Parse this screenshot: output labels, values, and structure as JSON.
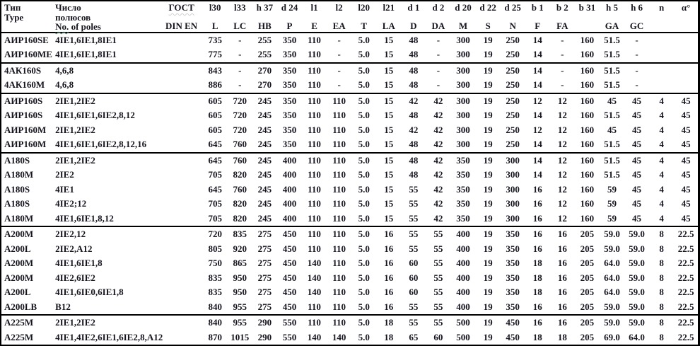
{
  "table": {
    "header": {
      "type_col": {
        "line1": "Тип",
        "line2": "Type"
      },
      "poles_col": {
        "line1": "Число",
        "line2": "полюсов",
        "line3_no": "No.",
        "line3_rest": "of poles"
      },
      "gost_col": {
        "line1": "ГОСТ",
        "line2": "DIN EN"
      },
      "dim_cols": [
        {
          "symbol": "l30",
          "din": "L"
        },
        {
          "symbol": "l33",
          "din": "LC"
        },
        {
          "symbol": "h 37",
          "din": "HB"
        },
        {
          "symbol": "d 24",
          "din": "P"
        },
        {
          "symbol": "l1",
          "din": "E"
        },
        {
          "symbol": "l2",
          "din": "EA"
        },
        {
          "symbol": "l20",
          "din": "T"
        },
        {
          "symbol": "l21",
          "din": "LA"
        },
        {
          "symbol": "d 1",
          "din": "D"
        },
        {
          "symbol": "d 2",
          "din": "DA"
        },
        {
          "symbol": "d 20",
          "din": "M"
        },
        {
          "symbol": "d 22",
          "din": "S"
        },
        {
          "symbol": "d 25",
          "din": "N"
        },
        {
          "symbol": "b 1",
          "din": "F"
        },
        {
          "symbol": "b 2",
          "din": "FA"
        },
        {
          "symbol": "b 31",
          "din": ""
        },
        {
          "symbol": "h 5",
          "din": "GA"
        },
        {
          "symbol": "h 6",
          "din": "GC"
        },
        {
          "symbol": "n",
          "din": ""
        },
        {
          "symbol": "α°",
          "din": ""
        }
      ]
    },
    "groups": [
      {
        "rows": [
          {
            "type": "АИР160SE",
            "poles": "4IE1,6IE1,8IE1",
            "gost": "",
            "values": [
              "735",
              "-",
              "255",
              "350",
              "110",
              "-",
              "5.0",
              "15",
              "48",
              "-",
              "300",
              "19",
              "250",
              "14",
              "-",
              "160",
              "51.5",
              "-",
              "",
              ""
            ]
          },
          {
            "type": "АИР160ME",
            "poles": "4IE1,6IE1,8IE1",
            "gost": "",
            "values": [
              "775",
              "-",
              "255",
              "350",
              "110",
              "-",
              "5.0",
              "15",
              "48",
              "-",
              "300",
              "19",
              "250",
              "14",
              "-",
              "160",
              "51.5",
              "-",
              "",
              ""
            ]
          }
        ]
      },
      {
        "rows": [
          {
            "type": "4АК160S",
            "poles": "4,6,8",
            "gost": "",
            "values": [
              "843",
              "-",
              "270",
              "350",
              "110",
              "-",
              "5.0",
              "15",
              "48",
              "-",
              "300",
              "19",
              "250",
              "14",
              "-",
              "160",
              "51.5",
              "-",
              "",
              ""
            ]
          },
          {
            "type": "4АК160M",
            "poles": "4,6,8",
            "gost": "",
            "values": [
              "886",
              "-",
              "270",
              "350",
              "110",
              "-",
              "5.0",
              "15",
              "48",
              "-",
              "300",
              "19",
              "250",
              "14",
              "-",
              "160",
              "51.5",
              "-",
              "",
              ""
            ]
          }
        ]
      },
      {
        "rows": [
          {
            "type": "АИР160S",
            "poles": "2IE1,2IE2",
            "gost": "",
            "values": [
              "605",
              "720",
              "245",
              "350",
              "110",
              "110",
              "5.0",
              "15",
              "42",
              "42",
              "300",
              "19",
              "250",
              "12",
              "12",
              "160",
              "45",
              "45",
              "4",
              "45"
            ]
          },
          {
            "type": "АИР160S",
            "poles": "4IE1,6IE1,6IE2,8,12",
            "gost": "",
            "values": [
              "605",
              "720",
              "245",
              "350",
              "110",
              "110",
              "5.0",
              "15",
              "48",
              "42",
              "300",
              "19",
              "250",
              "14",
              "12",
              "160",
              "51.5",
              "45",
              "4",
              "45"
            ]
          },
          {
            "type": "АИР160M",
            "poles": "2IE1,2IE2",
            "gost": "",
            "values": [
              "605",
              "720",
              "245",
              "350",
              "110",
              "110",
              "5.0",
              "15",
              "42",
              "42",
              "300",
              "19",
              "250",
              "12",
              "12",
              "160",
              "45",
              "45",
              "4",
              "45"
            ]
          },
          {
            "type": "АИР160M",
            "poles": "4IE1,6IE1,6IE2,8,12,16",
            "gost": "",
            "values": [
              "645",
              "760",
              "245",
              "350",
              "110",
              "110",
              "5.0",
              "15",
              "48",
              "42",
              "300",
              "19",
              "250",
              "14",
              "12",
              "160",
              "51.5",
              "45",
              "4",
              "45"
            ]
          }
        ]
      },
      {
        "rows": [
          {
            "type": "А180S",
            "poles": "2IE1,2IE2",
            "gost": "",
            "values": [
              "645",
              "760",
              "245",
              "400",
              "110",
              "110",
              "5.0",
              "15",
              "48",
              "42",
              "350",
              "19",
              "300",
              "14",
              "12",
              "160",
              "51.5",
              "45",
              "4",
              "45"
            ]
          },
          {
            "type": "А180M",
            "poles": "2IE2",
            "gost": "",
            "values": [
              "705",
              "820",
              "245",
              "400",
              "110",
              "110",
              "5.0",
              "15",
              "48",
              "42",
              "350",
              "19",
              "300",
              "14",
              "12",
              "160",
              "51.5",
              "45",
              "4",
              "45"
            ]
          },
          {
            "type": "А180S",
            "poles": "4IE1",
            "gost": "",
            "values": [
              "645",
              "760",
              "245",
              "400",
              "110",
              "110",
              "5.0",
              "15",
              "55",
              "42",
              "350",
              "19",
              "300",
              "16",
              "12",
              "160",
              "59",
              "45",
              "4",
              "45"
            ]
          },
          {
            "type": "А180S",
            "poles": "4IE2;12",
            "gost": "",
            "values": [
              "705",
              "820",
              "245",
              "400",
              "110",
              "110",
              "5.0",
              "15",
              "55",
              "42",
              "350",
              "19",
              "300",
              "16",
              "12",
              "160",
              "59",
              "45",
              "4",
              "45"
            ]
          },
          {
            "type": "А180M",
            "poles": "4IE1,6IE1,8,12",
            "gost": "",
            "values": [
              "705",
              "820",
              "245",
              "400",
              "110",
              "110",
              "5.0",
              "15",
              "55",
              "42",
              "350",
              "19",
              "300",
              "16",
              "12",
              "160",
              "59",
              "45",
              "4",
              "45"
            ]
          }
        ]
      },
      {
        "rows": [
          {
            "type": "А200M",
            "poles": "2IE2,12",
            "gost": "",
            "values": [
              "720",
              "835",
              "275",
              "450",
              "110",
              "110",
              "5.0",
              "16",
              "55",
              "55",
              "400",
              "19",
              "350",
              "16",
              "16",
              "205",
              "59.0",
              "59.0",
              "8",
              "22.5"
            ]
          },
          {
            "type": "А200L",
            "poles": "2IE2,A12",
            "gost": "",
            "values": [
              "805",
              "920",
              "275",
              "450",
              "110",
              "110",
              "5.0",
              "16",
              "55",
              "55",
              "400",
              "19",
              "350",
              "16",
              "16",
              "205",
              "59.0",
              "59.0",
              "8",
              "22.5"
            ]
          },
          {
            "type": "А200M",
            "poles": "4IE1,6IE1,8",
            "gost": "",
            "values": [
              "750",
              "865",
              "275",
              "450",
              "140",
              "110",
              "5.0",
              "16",
              "60",
              "55",
              "400",
              "19",
              "350",
              "18",
              "16",
              "205",
              "64.0",
              "59.0",
              "8",
              "22.5"
            ]
          },
          {
            "type": "А200M",
            "poles": "4IE2,6IE2",
            "gost": "",
            "values": [
              "835",
              "950",
              "275",
              "450",
              "140",
              "110",
              "5.0",
              "16",
              "60",
              "55",
              "400",
              "19",
              "350",
              "18",
              "16",
              "205",
              "64.0",
              "59.0",
              "8",
              "22.5"
            ]
          },
          {
            "type": "А200L",
            "poles": "4IE1,6IE0,6IE1,8",
            "gost": "",
            "values": [
              "835",
              "950",
              "275",
              "450",
              "140",
              "110",
              "5.0",
              "16",
              "60",
              "55",
              "400",
              "19",
              "350",
              "18",
              "16",
              "205",
              "64.0",
              "59.0",
              "8",
              "22.5"
            ]
          },
          {
            "type": "А200LB",
            "poles": "В12",
            "gost": "",
            "values": [
              "840",
              "955",
              "275",
              "450",
              "110",
              "110",
              "5.0",
              "16",
              "55",
              "55",
              "400",
              "19",
              "350",
              "16",
              "16",
              "205",
              "59.0",
              "59.0",
              "8",
              "22.5"
            ]
          }
        ]
      },
      {
        "rows": [
          {
            "type": "А225M",
            "poles": "2IE1,2IE2",
            "gost": "",
            "values": [
              "840",
              "955",
              "290",
              "550",
              "110",
              "110",
              "5.0",
              "18",
              "55",
              "55",
              "500",
              "19",
              "450",
              "16",
              "16",
              "205",
              "59.0",
              "59.0",
              "8",
              "22.5"
            ]
          },
          {
            "type": "А225M",
            "poles": "4IE1,4IE2,6IE1,6IE2,8,A12",
            "gost": "",
            "values": [
              "870",
              "1015",
              "290",
              "550",
              "140",
              "140",
              "5.0",
              "18",
              "65",
              "60",
              "500",
              "19",
              "450",
              "18",
              "18",
              "205",
              "69.0",
              "64.0",
              "8",
              "22.5"
            ]
          }
        ]
      }
    ]
  },
  "colors": {
    "text": "#15151f",
    "border": "#000000",
    "spellcheck_wavy": "#5d8a7c",
    "background": "#ffffff"
  }
}
